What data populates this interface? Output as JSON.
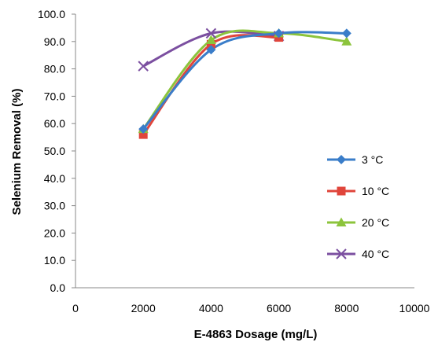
{
  "chart_data": {
    "type": "line",
    "title": "",
    "xlabel": "E-4863 Dosage (mg/L)",
    "ylabel": "Selenium Removal (%)",
    "xlim": [
      0,
      10000
    ],
    "ylim": [
      0,
      100
    ],
    "xticks": [
      "0",
      "2000",
      "4000",
      "6000",
      "8000",
      "10000"
    ],
    "yticks": [
      "0.0",
      "10.0",
      "20.0",
      "30.0",
      "40.0",
      "50.0",
      "60.0",
      "70.0",
      "80.0",
      "90.0",
      "100.0"
    ],
    "grid": false,
    "legend_position": "right",
    "series": [
      {
        "name": "3 °C",
        "color": "#3a7dc9",
        "marker": "diamond",
        "points": [
          [
            2000,
            58
          ],
          [
            4000,
            87
          ],
          [
            6000,
            93
          ],
          [
            8000,
            93
          ]
        ]
      },
      {
        "name": "10 °C",
        "color": "#e0453b",
        "marker": "square",
        "points": [
          [
            2000,
            56
          ],
          [
            4000,
            89
          ],
          [
            6000,
            91.5
          ]
        ]
      },
      {
        "name": "20 °C",
        "color": "#8cc43c",
        "marker": "triangle",
        "points": [
          [
            2000,
            58
          ],
          [
            4000,
            90.5
          ],
          [
            6000,
            93
          ],
          [
            8000,
            90
          ]
        ]
      },
      {
        "name": "40 °C",
        "color": "#7b4fa0",
        "marker": "x",
        "points": [
          [
            2000,
            81
          ],
          [
            4000,
            93
          ],
          [
            6000,
            92
          ]
        ]
      }
    ]
  }
}
